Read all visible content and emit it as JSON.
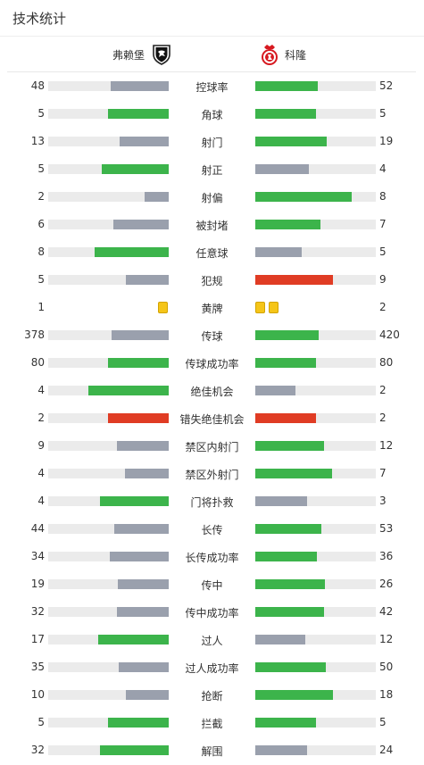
{
  "page": {
    "title": "技术统计"
  },
  "teams": {
    "home": {
      "name": "弗赖堡",
      "logo_icon": "freiburg-crest-icon"
    },
    "away": {
      "name": "科隆",
      "logo_icon": "koln-crest-icon"
    }
  },
  "colors": {
    "green": "#3cb44b",
    "gray": "#9aa0ad",
    "red": "#e03c24",
    "track": "#ebebeb",
    "yellow_card": "#f5c518"
  },
  "stats": [
    {
      "label": "控球率",
      "home": "48",
      "away": "52",
      "home_frac": 0.48,
      "away_frac": 0.52,
      "home_color": "gray",
      "away_color": "green"
    },
    {
      "label": "角球",
      "home": "5",
      "away": "5",
      "home_frac": 0.5,
      "away_frac": 0.5,
      "home_color": "green",
      "away_color": "green"
    },
    {
      "label": "射门",
      "home": "13",
      "away": "19",
      "home_frac": 0.406,
      "away_frac": 0.594,
      "home_color": "gray",
      "away_color": "green"
    },
    {
      "label": "射正",
      "home": "5",
      "away": "4",
      "home_frac": 0.556,
      "away_frac": 0.444,
      "home_color": "green",
      "away_color": "gray"
    },
    {
      "label": "射偏",
      "home": "2",
      "away": "8",
      "home_frac": 0.2,
      "away_frac": 0.8,
      "home_color": "gray",
      "away_color": "green"
    },
    {
      "label": "被封堵",
      "home": "6",
      "away": "7",
      "home_frac": 0.462,
      "away_frac": 0.538,
      "home_color": "gray",
      "away_color": "green"
    },
    {
      "label": "任意球",
      "home": "8",
      "away": "5",
      "home_frac": 0.615,
      "away_frac": 0.385,
      "home_color": "green",
      "away_color": "gray"
    },
    {
      "label": "犯规",
      "home": "5",
      "away": "9",
      "home_frac": 0.357,
      "away_frac": 0.643,
      "home_color": "gray",
      "away_color": "red"
    },
    {
      "label": "黄牌",
      "home": "1",
      "away": "2",
      "cards": true,
      "home_cards": 1,
      "away_cards": 2
    },
    {
      "label": "传球",
      "home": "378",
      "away": "420",
      "home_frac": 0.474,
      "away_frac": 0.526,
      "home_color": "gray",
      "away_color": "green"
    },
    {
      "label": "传球成功率",
      "home": "80",
      "away": "80",
      "home_frac": 0.5,
      "away_frac": 0.5,
      "home_color": "green",
      "away_color": "green"
    },
    {
      "label": "绝佳机会",
      "home": "4",
      "away": "2",
      "home_frac": 0.667,
      "away_frac": 0.333,
      "home_color": "green",
      "away_color": "gray"
    },
    {
      "label": "错失绝佳机会",
      "home": "2",
      "away": "2",
      "home_frac": 0.5,
      "away_frac": 0.5,
      "home_color": "red",
      "away_color": "red"
    },
    {
      "label": "禁区内射门",
      "home": "9",
      "away": "12",
      "home_frac": 0.429,
      "away_frac": 0.571,
      "home_color": "gray",
      "away_color": "green"
    },
    {
      "label": "禁区外射门",
      "home": "4",
      "away": "7",
      "home_frac": 0.364,
      "away_frac": 0.636,
      "home_color": "gray",
      "away_color": "green"
    },
    {
      "label": "门将扑救",
      "home": "4",
      "away": "3",
      "home_frac": 0.571,
      "away_frac": 0.429,
      "home_color": "green",
      "away_color": "gray"
    },
    {
      "label": "长传",
      "home": "44",
      "away": "53",
      "home_frac": 0.454,
      "away_frac": 0.546,
      "home_color": "gray",
      "away_color": "green"
    },
    {
      "label": "长传成功率",
      "home": "34",
      "away": "36",
      "home_frac": 0.486,
      "away_frac": 0.514,
      "home_color": "gray",
      "away_color": "green"
    },
    {
      "label": "传中",
      "home": "19",
      "away": "26",
      "home_frac": 0.422,
      "away_frac": 0.578,
      "home_color": "gray",
      "away_color": "green"
    },
    {
      "label": "传中成功率",
      "home": "32",
      "away": "42",
      "home_frac": 0.432,
      "away_frac": 0.568,
      "home_color": "gray",
      "away_color": "green"
    },
    {
      "label": "过人",
      "home": "17",
      "away": "12",
      "home_frac": 0.586,
      "away_frac": 0.414,
      "home_color": "green",
      "away_color": "gray"
    },
    {
      "label": "过人成功率",
      "home": "35",
      "away": "50",
      "home_frac": 0.412,
      "away_frac": 0.588,
      "home_color": "gray",
      "away_color": "green"
    },
    {
      "label": "抢断",
      "home": "10",
      "away": "18",
      "home_frac": 0.357,
      "away_frac": 0.643,
      "home_color": "gray",
      "away_color": "green"
    },
    {
      "label": "拦截",
      "home": "5",
      "away": "5",
      "home_frac": 0.5,
      "away_frac": 0.5,
      "home_color": "green",
      "away_color": "green"
    },
    {
      "label": "解围",
      "home": "32",
      "away": "24",
      "home_frac": 0.571,
      "away_frac": 0.429,
      "home_color": "green",
      "away_color": "gray"
    }
  ]
}
